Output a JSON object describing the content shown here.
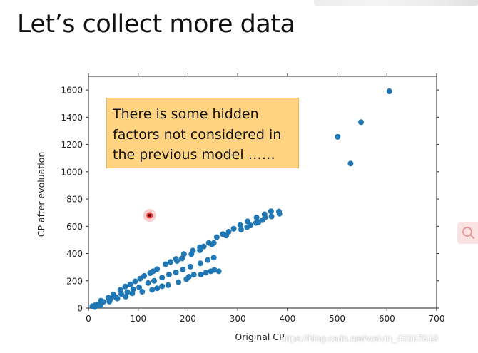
{
  "slide": {
    "title": "Let’s collect more data"
  },
  "annotation": {
    "lines": [
      "There is some hidden",
      "factors not considered in",
      "the previous model ……"
    ],
    "fill_color": "#ffd37f"
  },
  "watermark": {
    "text": "https://blog.csdn.net/weixin_45067618"
  },
  "chart_data": {
    "type": "scatter",
    "xlabel": "Original CP",
    "ylabel": "CP after evoluation",
    "xlim": [
      0,
      700
    ],
    "ylim": [
      0,
      1700
    ],
    "xticks": [
      0,
      100,
      200,
      300,
      400,
      500,
      600,
      700
    ],
    "yticks": [
      0,
      200,
      400,
      600,
      800,
      1000,
      1200,
      1400,
      1600
    ],
    "grid": false,
    "marker_color": "#1f77b4",
    "highlighted_point": {
      "x": 123,
      "y": 680,
      "color": "#e83c3c"
    },
    "series": [
      {
        "points": [
          [
            8,
            14
          ],
          [
            13,
            20
          ],
          [
            18,
            24
          ],
          [
            25,
            38
          ],
          [
            30,
            46
          ],
          [
            44,
            66
          ],
          [
            55,
            80
          ],
          [
            66,
            104
          ],
          [
            78,
            118
          ],
          [
            90,
            138
          ],
          [
            102,
            152
          ],
          [
            120,
            184
          ],
          [
            132,
            200
          ],
          [
            148,
            224
          ],
          [
            162,
            246
          ],
          [
            176,
            262
          ],
          [
            190,
            282
          ],
          [
            205,
            304
          ],
          [
            225,
            328
          ],
          [
            240,
            352
          ],
          [
            252,
            370
          ],
          [
            25,
            54
          ],
          [
            40,
            76
          ],
          [
            50,
            100
          ],
          [
            64,
            134
          ],
          [
            74,
            158
          ],
          [
            84,
            174
          ],
          [
            94,
            196
          ],
          [
            104,
            216
          ],
          [
            112,
            236
          ],
          [
            124,
            256
          ],
          [
            130,
            270
          ],
          [
            138,
            286
          ],
          [
            155,
            322
          ],
          [
            165,
            338
          ],
          [
            176,
            360
          ],
          [
            192,
            396
          ],
          [
            210,
            422
          ],
          [
            224,
            446
          ],
          [
            242,
            478
          ],
          [
            258,
            520
          ],
          [
            270,
            542
          ],
          [
            282,
            560
          ],
          [
            292,
            582
          ],
          [
            305,
            608
          ],
          [
            320,
            636
          ],
          [
            338,
            664
          ],
          [
            354,
            688
          ],
          [
            367,
            710
          ],
          [
            383,
            708
          ],
          [
            13,
            8
          ],
          [
            24,
            20
          ],
          [
            42,
            48
          ],
          [
            58,
            70
          ],
          [
            75,
            84
          ],
          [
            88,
            108
          ],
          [
            108,
            120
          ],
          [
            128,
            134
          ],
          [
            138,
            145
          ],
          [
            148,
            160
          ],
          [
            160,
            168
          ],
          [
            181,
            190
          ],
          [
            197,
            212
          ],
          [
            202,
            230
          ],
          [
            212,
            245
          ],
          [
            226,
            246
          ],
          [
            236,
            260
          ],
          [
            246,
            270
          ],
          [
            253,
            280
          ],
          [
            262,
            270
          ],
          [
            178,
            345
          ],
          [
            188,
            364
          ],
          [
            207,
            396
          ],
          [
            224,
            424
          ],
          [
            232,
            452
          ],
          [
            248,
            467
          ],
          [
            252,
            477
          ],
          [
            277,
            532
          ],
          [
            307,
            575
          ],
          [
            319,
            594
          ],
          [
            326,
            606
          ],
          [
            337,
            625
          ],
          [
            342,
            630
          ],
          [
            350,
            645
          ],
          [
            355,
            665
          ],
          [
            368,
            672
          ],
          [
            384,
            692
          ],
          [
            501,
            1256
          ],
          [
            527,
            1060
          ],
          [
            548,
            1364
          ],
          [
            605,
            1590
          ]
        ]
      }
    ]
  }
}
